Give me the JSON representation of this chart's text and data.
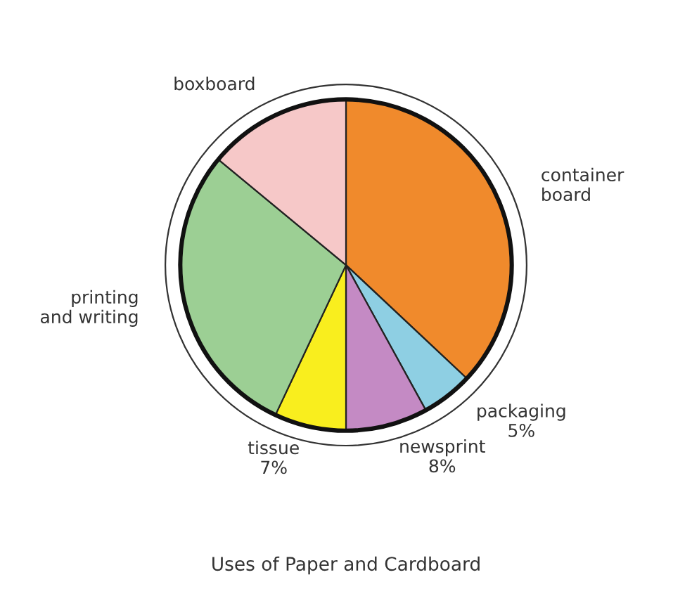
{
  "chart_data": {
    "type": "pie",
    "title": "Uses of Paper and Cardboard",
    "categories": [
      "container\nboard",
      "packaging",
      "newsprint",
      "tissue",
      "printing\nand writing",
      "boxboard"
    ],
    "values": [
      37,
      5,
      8,
      7,
      29,
      14
    ],
    "value_labels": [
      null,
      "5%",
      "8%",
      "7%",
      null,
      null
    ],
    "colors": [
      "#f08a2c",
      "#8ecfe3",
      "#c48ac4",
      "#f9ee1e",
      "#9ccf94",
      "#f6c8c8"
    ],
    "legend": false
  }
}
